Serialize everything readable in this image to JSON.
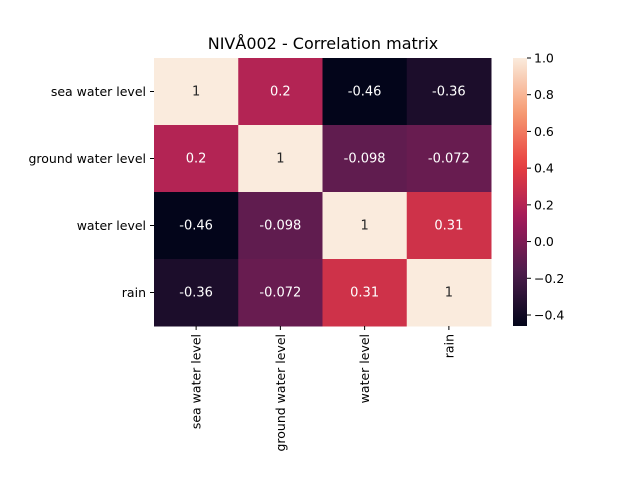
{
  "chart_data": {
    "type": "heatmap",
    "title": "NIVÅ002 - Correlation matrix",
    "row_labels": [
      "sea water level",
      "ground water level",
      "water level",
      "rain"
    ],
    "col_labels": [
      "sea water level",
      "ground water level",
      "water level",
      "rain"
    ],
    "values": [
      [
        1,
        0.2,
        -0.46,
        -0.36
      ],
      [
        0.2,
        1,
        -0.098,
        -0.072
      ],
      [
        -0.46,
        -0.098,
        1,
        0.31
      ],
      [
        -0.36,
        -0.072,
        0.31,
        1
      ]
    ],
    "cell_labels": [
      [
        "1",
        "0.2",
        "-0.46",
        "-0.36"
      ],
      [
        "0.2",
        "1",
        "-0.098",
        "-0.072"
      ],
      [
        "-0.46",
        "-0.098",
        "1",
        "0.31"
      ],
      [
        "-0.36",
        "-0.072",
        "0.31",
        "1"
      ]
    ],
    "colorbar": {
      "min": -0.46,
      "max": 1.0,
      "ticks": [
        -0.4,
        -0.2,
        0.0,
        0.2,
        0.4,
        0.6,
        0.8,
        1.0
      ],
      "tick_labels": [
        "−0.4",
        "−0.2",
        "0.0",
        "0.2",
        "0.4",
        "0.6",
        "0.8",
        "1.0"
      ]
    },
    "colormap": [
      "#03051a",
      "#4c1d4b",
      "#a11a5b",
      "#e83f3f",
      "#f69c73",
      "#faebdd"
    ]
  }
}
